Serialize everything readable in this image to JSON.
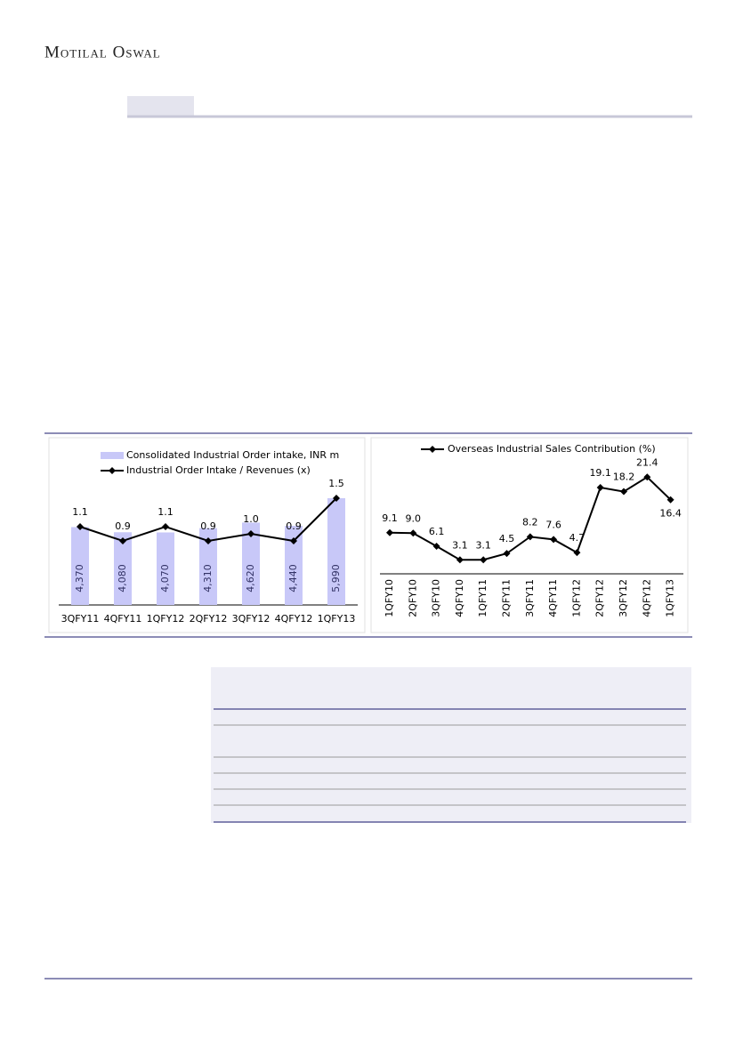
{
  "header": {
    "brand": "Motilal Oswal"
  },
  "chart_data": [
    {
      "type": "bar",
      "categories": [
        "3QFY11",
        "4QFY11",
        "1QFY12",
        "2QFY12",
        "3QFY12",
        "4QFY12",
        "1QFY13"
      ],
      "series": [
        {
          "name": "Consolidated Industrial Order intake, INR m",
          "color": "#c8c8f8",
          "values": [
            4370,
            4080,
            4070,
            4310,
            4620,
            4440,
            5990
          ],
          "value_labels": [
            "4,370",
            "4,080",
            "4,070",
            "4,310",
            "4,620",
            "4,440",
            "5,990"
          ]
        },
        {
          "name": "Industrial Order Intake / Revenues (x)",
          "color": "#000000",
          "axis": "y2",
          "values": [
            1.1,
            0.9,
            1.1,
            0.9,
            1.0,
            0.9,
            1.5
          ],
          "value_labels": [
            "1.1",
            "0.9",
            "1.1",
            "0.9",
            "1.0",
            "0.9",
            "1.5"
          ]
        }
      ]
    },
    {
      "type": "line",
      "categories": [
        "1QFY10",
        "2QFY10",
        "3QFY10",
        "4QFY10",
        "1QFY11",
        "2QFY11",
        "3QFY11",
        "4QFY11",
        "1QFY12",
        "2QFY12",
        "3QFY12",
        "4QFY12",
        "1QFY13"
      ],
      "series": [
        {
          "name": "Overseas Industrial Sales Contribution (%)",
          "color": "#000000",
          "values": [
            9.1,
            9.0,
            6.1,
            3.1,
            3.1,
            4.5,
            8.2,
            7.6,
            4.7,
            19.1,
            18.2,
            21.4,
            16.4
          ],
          "value_labels": [
            "9.1",
            "9.0",
            "6.1",
            "3.1",
            "3.1",
            "4.5",
            "8.2",
            "7.6",
            "4.7",
            "19.1",
            "18.2",
            "21.4",
            "16.4"
          ]
        }
      ]
    }
  ]
}
